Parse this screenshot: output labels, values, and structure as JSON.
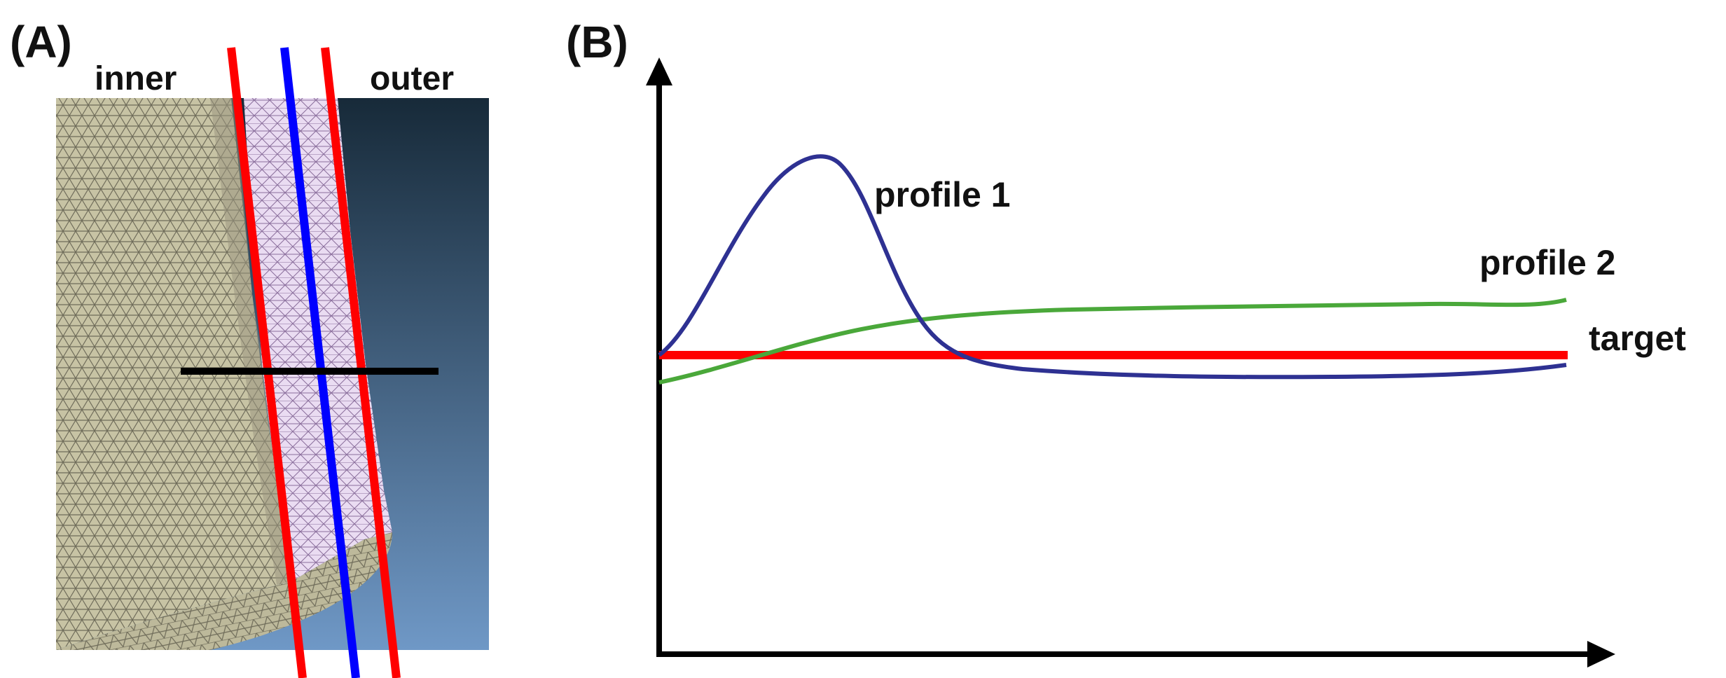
{
  "panel_a": {
    "label": "(A)",
    "inner_label": "inner",
    "outer_label": "outer",
    "colors": {
      "mesh_fill": "#c7c3a4",
      "mesh_line": "#6e6b59",
      "wall_fill": "#eadcf2",
      "wall_line": "#8a6e9c",
      "bg_top": "#172a39",
      "bg_bottom": "#6f98c6",
      "boundary_line": "#ff0000",
      "center_line": "#0000ff",
      "section_line": "#000000"
    }
  },
  "panel_b": {
    "label": "(B)",
    "colors": {
      "profile_1": "#2e3192",
      "profile_2": "#4aa83a",
      "target": "#ff0000",
      "axes": "#000000"
    },
    "curves": [
      {
        "name": "profile 1",
        "color": "#2e3192"
      },
      {
        "name": "profile 2",
        "color": "#4aa83a"
      },
      {
        "name": "target",
        "color": "#ff0000"
      }
    ]
  }
}
